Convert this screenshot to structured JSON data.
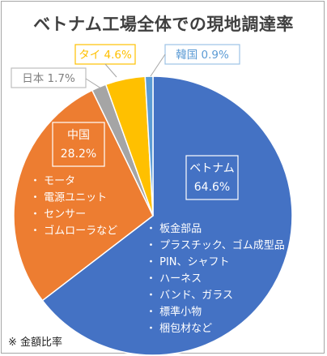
{
  "chart_data": {
    "type": "pie",
    "title": "ベトナム工場全体での現地調達率",
    "footnote": "※ 金額比率",
    "slices": [
      {
        "label": "ベトナム",
        "percent_label": "64.6%",
        "value": 64.6,
        "color": "#4472c4",
        "items": [
          "板金部品",
          "プラスチック、ゴム成型品",
          "PIN、シャフト",
          "ハーネス",
          "バンド、ガラス",
          "標準小物",
          "梱包材など"
        ]
      },
      {
        "label": "中国",
        "percent_label": "28.2%",
        "value": 28.2,
        "color": "#ed7d31",
        "items": [
          "モータ",
          "電源ユニット",
          "センサー",
          "ゴムローラなど"
        ]
      },
      {
        "label": "日本",
        "percent_label": "1.7%",
        "value": 1.7,
        "color": "#a5a5a5",
        "items": []
      },
      {
        "label": "タイ",
        "percent_label": "4.6%",
        "value": 4.6,
        "color": "#ffc000",
        "items": []
      },
      {
        "label": "韓国",
        "percent_label": "0.9%",
        "value": 0.9,
        "color": "#5b9bd5",
        "items": []
      }
    ]
  }
}
